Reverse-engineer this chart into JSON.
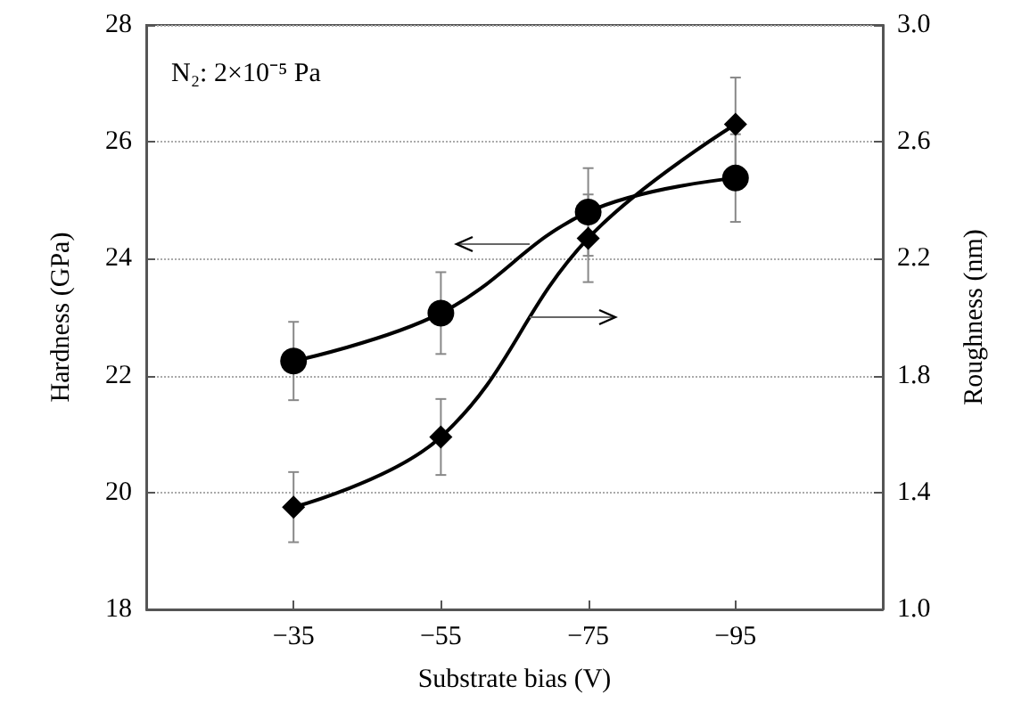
{
  "chart_data": {
    "type": "line",
    "xlabel": "Substrate bias (V)",
    "ylabel": "Hardness (GPa)",
    "y2label": "Roughness (nm)",
    "annotations": [
      "N₂: 2×10⁻⁵ Pa"
    ],
    "x": [
      -35,
      -55,
      -75,
      -95
    ],
    "xlim": [
      -15,
      -115
    ],
    "xticks": [
      {
        "value": -35,
        "label": "−35"
      },
      {
        "value": -55,
        "label": "−55"
      },
      {
        "value": -75,
        "label": "−75"
      },
      {
        "value": -95,
        "label": "−95"
      }
    ],
    "ylim": [
      18,
      28
    ],
    "yticks": [
      18,
      20,
      22,
      24,
      26,
      28
    ],
    "y2lim": [
      1,
      3
    ],
    "y2ticks": [
      {
        "value": 1,
        "label": "1.0"
      },
      {
        "value": 1.4,
        "label": "1.4"
      },
      {
        "value": 1.8,
        "label": "1.8"
      },
      {
        "value": 2.2,
        "label": "2.2"
      },
      {
        "value": 2.6,
        "label": "2.6"
      },
      {
        "value": 3,
        "label": "3.0"
      }
    ],
    "series": [
      {
        "color": "#000000",
        "marker": "circle",
        "values": [
          22.25,
          23.07,
          24.8,
          25.38
        ],
        "errors": [
          0.67,
          0.7,
          0.75,
          0.75
        ]
      },
      {
        "color": "#000000",
        "marker": "diamond",
        "axis": "y2",
        "values": [
          1.35,
          1.59,
          2.27,
          2.66
        ],
        "errors": [
          0.12,
          0.13,
          0.15,
          0.16
        ]
      }
    ],
    "grid": "y",
    "line_style": "solid"
  }
}
